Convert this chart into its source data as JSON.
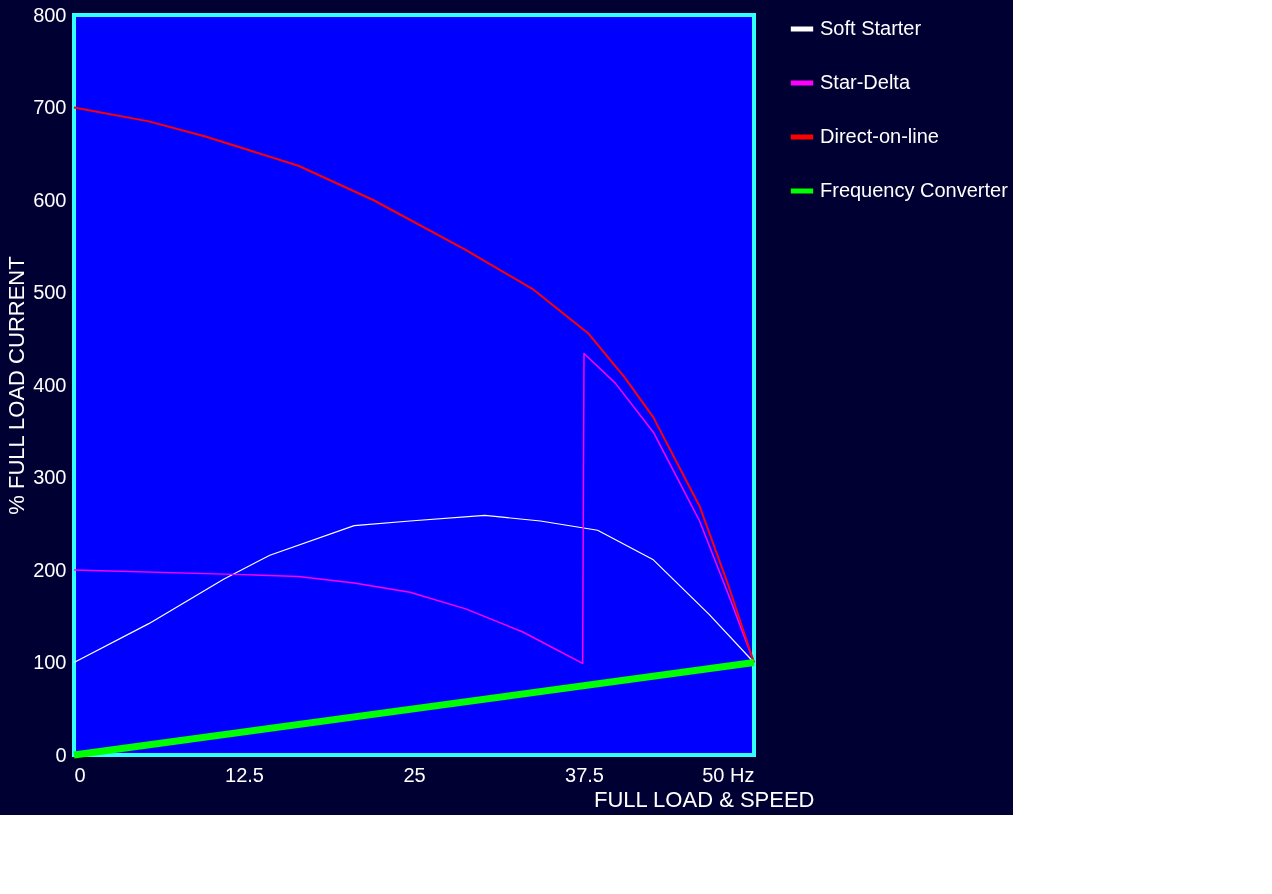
{
  "chart_data": {
    "type": "line",
    "xlabel": "FULL LOAD & SPEED",
    "ylabel": "% FULL LOAD CURRENT",
    "xlim": [
      0,
      50
    ],
    "ylim": [
      0,
      800
    ],
    "xticks": [
      0,
      12.5,
      25,
      37.5,
      {
        "value": 50,
        "label": "50 Hz"
      }
    ],
    "yticks": [
      0,
      100,
      200,
      300,
      400,
      500,
      600,
      700,
      800
    ],
    "grid": false,
    "legend": "right",
    "marker": "none",
    "line_style": "solid",
    "series": [
      {
        "name": "Soft Starter",
        "color": "#ffffff",
        "x": [
          0,
          5.5,
          11,
          14.4,
          20.6,
          24.7,
          30.2,
          34.3,
          38.5,
          42.6,
          46.7,
          50
        ],
        "values": [
          100,
          142,
          190,
          216,
          248,
          253,
          259,
          253,
          243,
          211,
          152,
          100
        ]
      },
      {
        "name": "Star-Delta",
        "color": "#ff00ff",
        "x": [
          0,
          12.4,
          16.5,
          20.6,
          24.7,
          28.8,
          33,
          37.4,
          37.5,
          39.8,
          42.6,
          46,
          48.1,
          50
        ],
        "values": [
          200,
          195,
          193,
          186,
          176,
          158,
          133,
          99,
          434,
          402,
          349,
          253,
          174,
          100
        ]
      },
      {
        "name": "Direct-on-line",
        "color": "#ff0000",
        "x": [
          0,
          5.5,
          9.6,
          16.5,
          22,
          28.8,
          33.7,
          37.8,
          40.5,
          42.6,
          46,
          48.1,
          50
        ],
        "values": [
          700,
          685,
          669,
          637,
          600,
          546,
          504,
          456,
          408,
          365,
          269,
          184,
          100
        ]
      },
      {
        "name": "Frequency Converter",
        "color": "#00ff00",
        "x": [
          0,
          50
        ],
        "values": [
          0,
          100
        ]
      }
    ]
  }
}
